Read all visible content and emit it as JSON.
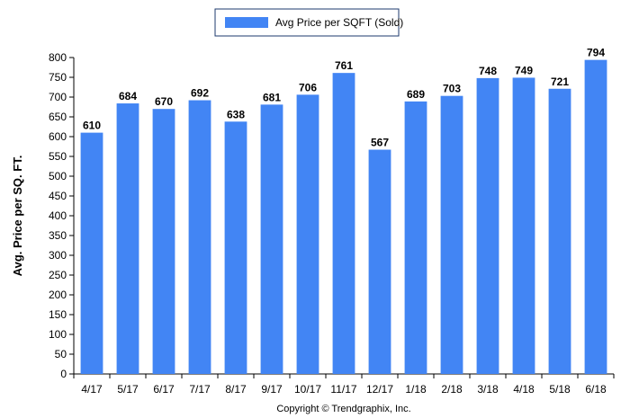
{
  "chart_data": {
    "type": "bar",
    "categories": [
      "4/17",
      "5/17",
      "6/17",
      "7/17",
      "8/17",
      "9/17",
      "10/17",
      "11/17",
      "12/17",
      "1/18",
      "2/18",
      "3/18",
      "4/18",
      "5/18",
      "6/18"
    ],
    "series": [
      {
        "name": "Avg Price per SQFT (Sold)",
        "values": [
          610,
          684,
          670,
          692,
          638,
          681,
          706,
          761,
          567,
          689,
          703,
          748,
          749,
          721,
          794
        ],
        "color": "#4285f4"
      }
    ],
    "xlabel": "",
    "ylabel": "Avg. Price per SQ. FT.",
    "ylim": [
      0,
      800
    ],
    "yticks": [
      0,
      50,
      100,
      150,
      200,
      250,
      300,
      350,
      400,
      450,
      500,
      550,
      600,
      650,
      700,
      750,
      800
    ],
    "grid": false,
    "legend_position": "top-center",
    "data_labels": true
  },
  "footer": {
    "copyright": "Copyright © Trendgraphix, Inc."
  }
}
